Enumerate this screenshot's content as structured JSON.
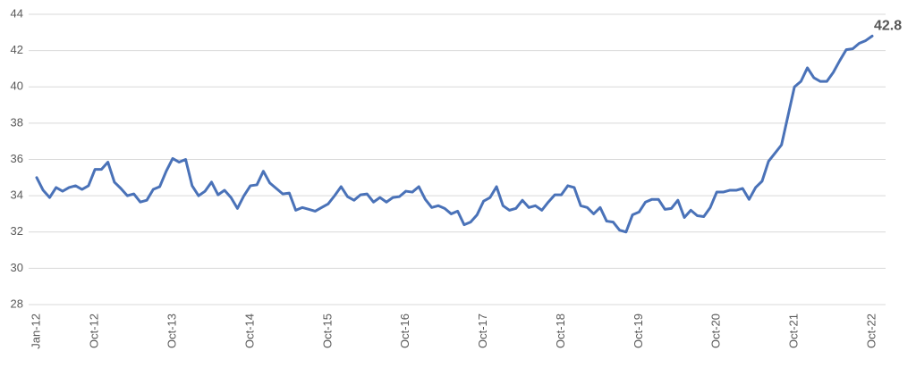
{
  "chart_data": {
    "type": "line",
    "categories": [
      "Jan-12",
      null,
      null,
      null,
      null,
      null,
      null,
      null,
      null,
      "Oct-12",
      null,
      null,
      null,
      null,
      null,
      null,
      null,
      null,
      null,
      null,
      null,
      "Oct-13",
      null,
      null,
      null,
      null,
      null,
      null,
      null,
      null,
      null,
      null,
      null,
      "Oct-14",
      null,
      null,
      null,
      null,
      null,
      null,
      null,
      null,
      null,
      null,
      null,
      "Oct-15",
      null,
      null,
      null,
      null,
      null,
      null,
      null,
      null,
      null,
      null,
      null,
      "Oct-16",
      null,
      null,
      null,
      null,
      null,
      null,
      null,
      null,
      null,
      null,
      null,
      "Oct-17",
      null,
      null,
      null,
      null,
      null,
      null,
      null,
      null,
      null,
      null,
      null,
      "Oct-18",
      null,
      null,
      null,
      null,
      null,
      null,
      null,
      null,
      null,
      null,
      null,
      "Oct-19",
      null,
      null,
      null,
      null,
      null,
      null,
      null,
      null,
      null,
      null,
      null,
      "Oct-20",
      null,
      null,
      null,
      null,
      null,
      null,
      null,
      null,
      null,
      null,
      null,
      "Oct-21",
      null,
      null,
      null,
      null,
      null,
      null,
      null,
      null,
      null,
      null,
      null,
      "Oct-22"
    ],
    "values": [
      35.0,
      34.3,
      33.9,
      34.45,
      34.25,
      34.45,
      34.55,
      34.35,
      34.55,
      35.45,
      35.45,
      35.85,
      34.75,
      34.4,
      34.0,
      34.1,
      33.65,
      33.75,
      34.35,
      34.5,
      35.35,
      36.05,
      35.85,
      36.0,
      34.55,
      34.0,
      34.25,
      34.75,
      34.05,
      34.3,
      33.9,
      33.3,
      34.0,
      34.55,
      34.6,
      35.35,
      34.7,
      34.4,
      34.1,
      34.15,
      33.2,
      33.35,
      33.25,
      33.15,
      33.35,
      33.55,
      34.0,
      34.5,
      33.95,
      33.75,
      34.05,
      34.1,
      33.65,
      33.9,
      33.65,
      33.9,
      33.95,
      34.25,
      34.2,
      34.5,
      33.8,
      33.35,
      33.45,
      33.3,
      33.0,
      33.15,
      32.4,
      32.55,
      32.95,
      33.7,
      33.9,
      34.5,
      33.45,
      33.2,
      33.3,
      33.75,
      33.35,
      33.45,
      33.2,
      33.65,
      34.05,
      34.05,
      34.55,
      34.45,
      33.45,
      33.35,
      33.0,
      33.35,
      32.6,
      32.55,
      32.1,
      32.0,
      32.95,
      33.1,
      33.65,
      33.8,
      33.8,
      33.25,
      33.3,
      33.75,
      32.8,
      33.2,
      32.9,
      32.85,
      33.35,
      34.2,
      34.2,
      34.3,
      34.3,
      34.4,
      33.8,
      34.45,
      34.8,
      35.9,
      36.35,
      36.8,
      38.4,
      40.0,
      40.3,
      41.05,
      40.5,
      40.3,
      40.3,
      40.8,
      41.45,
      42.05,
      42.1,
      42.4,
      42.55,
      42.8
    ],
    "color": "#4a72b8",
    "ylim": [
      28,
      44
    ],
    "yticks": [
      28,
      30,
      32,
      34,
      36,
      38,
      40,
      42,
      44
    ],
    "grid": true
  }
}
